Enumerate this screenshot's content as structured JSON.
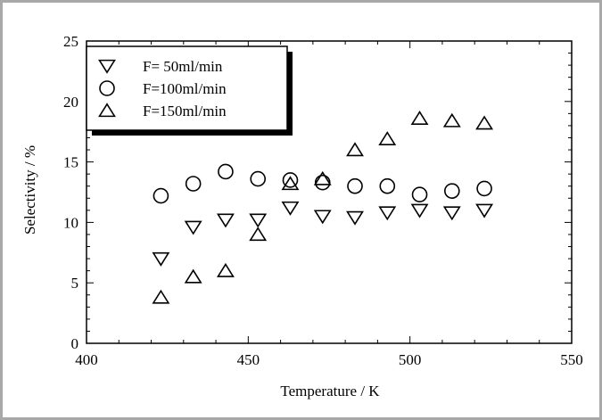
{
  "chart_data": {
    "type": "scatter",
    "title": "",
    "xlabel": "Temperature / K",
    "ylabel": "Selectivity / %",
    "xlim": [
      400,
      550
    ],
    "ylim": [
      0,
      25
    ],
    "xticks": [
      "400",
      "450",
      "500",
      "550"
    ],
    "yticks": [
      "0",
      "5",
      "10",
      "15",
      "20",
      "25"
    ],
    "grid": false,
    "legend_position": "top-left",
    "series": [
      {
        "name": "F=  50ml/min",
        "marker": "triangle-down",
        "x": [
          423,
          433,
          443,
          453,
          463,
          473,
          483,
          493,
          503,
          513,
          523
        ],
        "y": [
          7.0,
          9.6,
          10.2,
          10.2,
          11.2,
          10.5,
          10.4,
          10.8,
          11.0,
          10.8,
          11.0
        ]
      },
      {
        "name": "F=100ml/min",
        "marker": "circle",
        "x": [
          423,
          433,
          443,
          453,
          463,
          473,
          483,
          493,
          503,
          513,
          523
        ],
        "y": [
          12.2,
          13.2,
          14.2,
          13.6,
          13.5,
          13.3,
          13.0,
          13.0,
          12.3,
          12.6,
          12.8
        ]
      },
      {
        "name": "F=150ml/min",
        "marker": "triangle-up",
        "x": [
          423,
          433,
          443,
          453,
          463,
          473,
          483,
          493,
          503,
          513,
          523
        ],
        "y": [
          3.8,
          5.5,
          6.0,
          9.0,
          13.2,
          13.6,
          16.0,
          16.9,
          18.6,
          18.4,
          18.2
        ]
      }
    ]
  }
}
